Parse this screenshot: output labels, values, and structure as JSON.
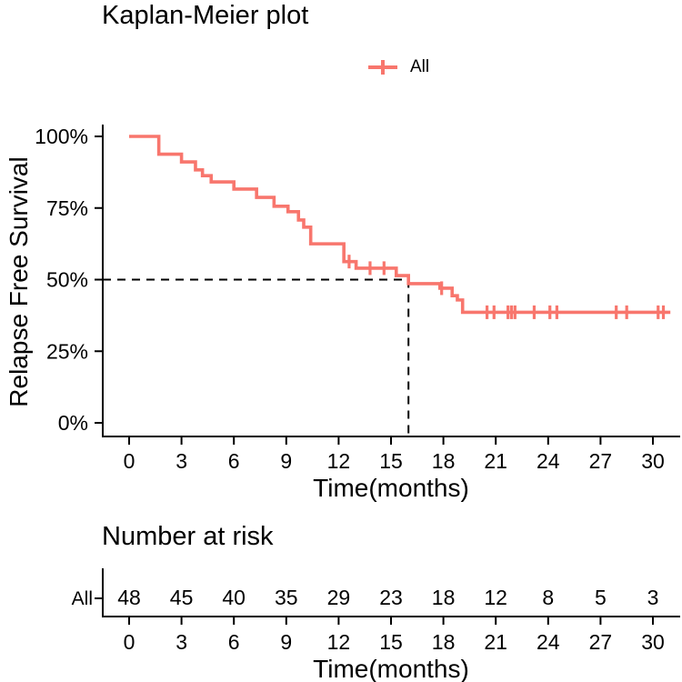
{
  "title": "Kaplan-Meier plot",
  "legend": {
    "label": "All"
  },
  "colors": {
    "series": "#F8766D",
    "axis": "#000000",
    "median_line": "#000000",
    "background": "#FFFFFF"
  },
  "chart_data": {
    "type": "line",
    "subtype": "kaplan-meier-step-curve",
    "title": "Kaplan-Meier plot",
    "xlabel": "Time(months)",
    "ylabel": "Relapse Free Survival",
    "xlim": [
      0,
      31.5
    ],
    "ylim_percent": [
      0,
      100
    ],
    "xticks": [
      0,
      3,
      6,
      9,
      12,
      15,
      18,
      21,
      24,
      27,
      30
    ],
    "yticks": [
      0,
      25,
      50,
      75,
      100
    ],
    "ytick_suffix": "%",
    "grid": false,
    "legend_position": "top-center",
    "series": [
      {
        "name": "All",
        "color": "#F8766D",
        "steps_time_survivalpct": [
          [
            0,
            100
          ],
          [
            1.7,
            93.8
          ],
          [
            3.0,
            91.1
          ],
          [
            3.8,
            88.3
          ],
          [
            4.2,
            86.3
          ],
          [
            4.7,
            84.1
          ],
          [
            6.0,
            81.6
          ],
          [
            7.3,
            78.7
          ],
          [
            8.3,
            75.6
          ],
          [
            9.1,
            73.7
          ],
          [
            9.7,
            70.8
          ],
          [
            10.0,
            68.3
          ],
          [
            10.4,
            62.5
          ],
          [
            12.3,
            56.3
          ],
          [
            13.0,
            54.0
          ],
          [
            15.3,
            51.4
          ],
          [
            16.0,
            48.6
          ],
          [
            17.8,
            47.0
          ],
          [
            18.5,
            44.4
          ],
          [
            18.8,
            42.9
          ],
          [
            19.1,
            38.6
          ],
          [
            31.0,
            38.6
          ]
        ],
        "censor_marks_time_survivalpct": [
          [
            12.6,
            56.3
          ],
          [
            13.8,
            54.0
          ],
          [
            14.6,
            54.0
          ],
          [
            17.9,
            47.0
          ],
          [
            20.5,
            38.6
          ],
          [
            20.9,
            38.6
          ],
          [
            21.7,
            38.6
          ],
          [
            21.9,
            38.6
          ],
          [
            22.1,
            38.6
          ],
          [
            23.2,
            38.6
          ],
          [
            24.1,
            38.6
          ],
          [
            24.5,
            38.6
          ],
          [
            27.9,
            38.6
          ],
          [
            28.5,
            38.6
          ],
          [
            30.3,
            38.6
          ],
          [
            30.6,
            38.6
          ]
        ]
      }
    ],
    "median_line": {
      "time": 16,
      "survival_percent": 50,
      "style": "dashed"
    },
    "risk_table": {
      "title": "Number at risk",
      "xlabel": "Time(months)",
      "times": [
        0,
        3,
        6,
        9,
        12,
        15,
        18,
        21,
        24,
        27,
        30
      ],
      "rows": [
        {
          "label": "All",
          "counts": [
            48,
            45,
            40,
            35,
            29,
            23,
            18,
            12,
            8,
            5,
            3
          ]
        }
      ]
    }
  }
}
